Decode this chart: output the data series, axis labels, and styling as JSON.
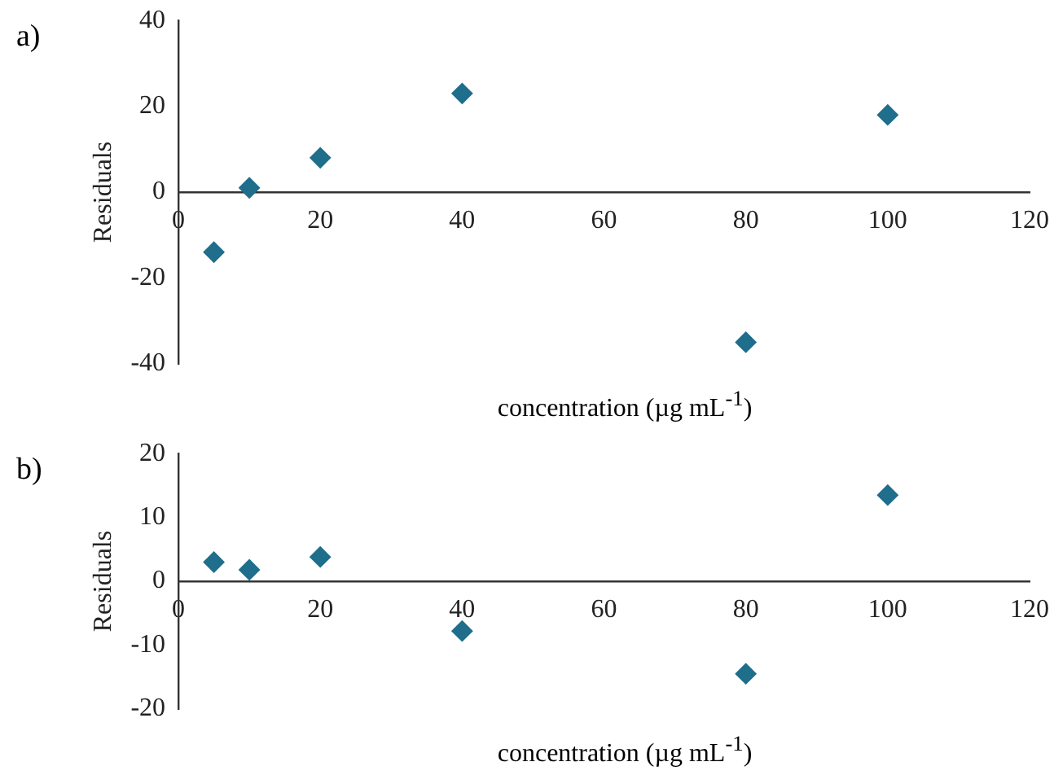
{
  "chart_data": [
    {
      "type": "scatter",
      "title": "a)",
      "xlabel": "concentration (µg mL$^{-1}$)",
      "ylabel": "Residuals",
      "x": [
        5,
        10,
        20,
        40,
        80,
        100
      ],
      "series": [
        {
          "color": "#1f6e8c",
          "values": [
            -14,
            1,
            8,
            23,
            -35,
            18
          ]
        }
      ],
      "xlim": [
        0,
        120
      ],
      "xticks": [
        0,
        20,
        40,
        60,
        80,
        100,
        120
      ],
      "ylim": [
        -40,
        40
      ],
      "yticks": [
        -40,
        -20,
        0,
        20,
        40
      ],
      "grid": false,
      "legend": false,
      "marker": "diamond"
    },
    {
      "type": "scatter",
      "title": "b)",
      "xlabel": "concentration (µg mL$^{-1}$)",
      "ylabel": "Residuals",
      "x": [
        5,
        10,
        20,
        40,
        80,
        100
      ],
      "series": [
        {
          "color": "#1f6e8c",
          "values": [
            3,
            1.8,
            3.8,
            -7.8,
            -14.5,
            13.5
          ]
        }
      ],
      "xlim": [
        0,
        120
      ],
      "xticks": [
        0,
        20,
        40,
        60,
        80,
        100,
        120
      ],
      "ylim": [
        -20,
        20
      ],
      "yticks": [
        -20,
        -10,
        0,
        10,
        20
      ],
      "grid": false,
      "legend": false,
      "marker": "diamond"
    }
  ]
}
